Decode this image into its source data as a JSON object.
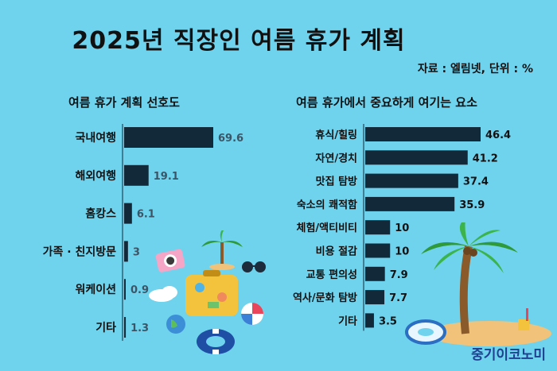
{
  "header": {
    "title": "2025년 직장인 여름 휴가 계획",
    "source": "자료 : 엘림넷, 단위 : %"
  },
  "brand": "중기이코노미",
  "colors": {
    "background": "#6fd3ee",
    "bar": "#12293a",
    "text": "#111111"
  },
  "chart_data": [
    {
      "type": "bar",
      "orientation": "horizontal",
      "title": "여름 휴가 계획 선호도",
      "categories": [
        "국내여행",
        "해외여행",
        "홈캉스",
        "가족 · 친지방문",
        "워케이션",
        "기타"
      ],
      "values": [
        69.6,
        19.1,
        6.1,
        3,
        0.9,
        1.3
      ],
      "value_labels": [
        "69.6",
        "19.1",
        "6.1",
        "3",
        "0.9",
        "1.3"
      ],
      "unit": "%"
    },
    {
      "type": "bar",
      "orientation": "horizontal",
      "title": "여름 휴가에서 중요하게 여기는 요소",
      "categories": [
        "휴식/힐링",
        "자연/경치",
        "맛집 탐방",
        "숙소의 쾌적함",
        "체험/액티비티",
        "비용 절감",
        "교통 편의성",
        "역사/문화 탐방",
        "기타"
      ],
      "values": [
        46.4,
        41.2,
        37.4,
        35.9,
        10,
        10,
        7.9,
        7.7,
        3.5
      ],
      "value_labels": [
        "46.4",
        "41.2",
        "37.4",
        "35.9",
        "10",
        "10",
        "7.9",
        "7.7",
        "3.5"
      ],
      "unit": "%"
    }
  ]
}
